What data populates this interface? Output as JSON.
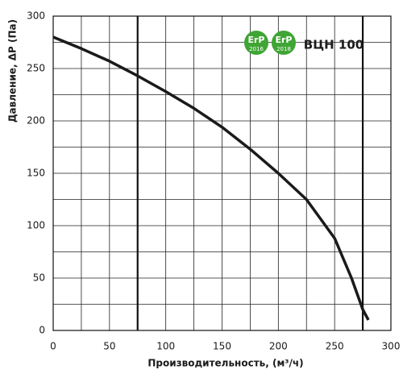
{
  "chart_data": {
    "type": "line",
    "title": "ВЦН 100",
    "badges": [
      {
        "label": "ErP",
        "year": "2016"
      },
      {
        "label": "ErP",
        "year": "2018"
      }
    ],
    "xlabel": "Производительность, (м³/ч)",
    "ylabel": "Давление, ΔP (Па)",
    "x": [
      0,
      25,
      50,
      75,
      100,
      125,
      150,
      175,
      200,
      225,
      250,
      265,
      275,
      280
    ],
    "series": [
      {
        "color": "#1a1a1a",
        "values": [
          280,
          269,
          257,
          243,
          228,
          212,
          194,
          173,
          150,
          125,
          88,
          50,
          20,
          10
        ]
      }
    ],
    "xlim": [
      0,
      300
    ],
    "ylim": [
      0,
      300
    ],
    "xticks": [
      0,
      50,
      100,
      150,
      200,
      250,
      300
    ],
    "yticks": [
      0,
      50,
      100,
      150,
      200,
      250,
      300
    ],
    "xgrid": [
      25,
      75,
      125,
      175,
      225,
      275
    ],
    "ygrid": [
      25,
      75,
      125,
      175,
      225,
      275
    ],
    "highlight_x": [
      75,
      275
    ],
    "grid": true
  }
}
